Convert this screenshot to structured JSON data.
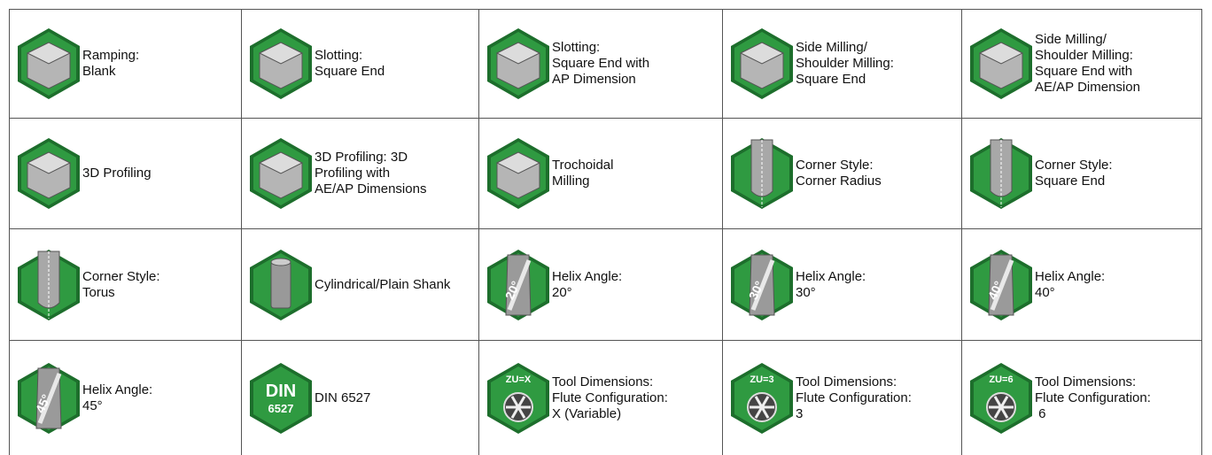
{
  "cells": [
    [
      {
        "lines": [
          "Ramping:",
          "Blank"
        ]
      },
      {
        "lines": [
          "Slotting:",
          "Square End"
        ]
      },
      {
        "lines": [
          "Slotting:",
          "Square End with",
          "AP Dimension"
        ]
      },
      {
        "lines": [
          "Side Milling/",
          "Shoulder Milling:",
          "Square End"
        ]
      },
      {
        "lines": [
          "Side Milling/",
          "Shoulder Milling:",
          "Square End with",
          "AE/AP Dimension"
        ]
      }
    ],
    [
      {
        "lines": [
          "3D Profiling"
        ]
      },
      {
        "lines": [
          "3D Profiling: 3D",
          "Profiling with",
          "AE/AP Dimensions"
        ]
      },
      {
        "lines": [
          "Trochoidal",
          "Milling"
        ]
      },
      {
        "lines": [
          "Corner Style:",
          "Corner Radius"
        ]
      },
      {
        "lines": [
          "Corner Style:",
          "Square End"
        ]
      }
    ],
    [
      {
        "lines": [
          "Corner Style:",
          "Torus"
        ]
      },
      {
        "lines": [
          "Cylindrical/Plain Shank"
        ]
      },
      {
        "lines": [
          "Helix Angle:",
          "20°"
        ],
        "badge": "20°"
      },
      {
        "lines": [
          "Helix Angle:",
          "30°"
        ],
        "badge": "30°"
      },
      {
        "lines": [
          "Helix Angle:",
          "40°"
        ],
        "badge": "40°"
      }
    ],
    [
      {
        "lines": [
          "Helix Angle:",
          "45°"
        ],
        "badge": "45°"
      },
      {
        "lines": [
          "DIN 6527"
        ],
        "badge": [
          "DIN",
          "6527"
        ]
      },
      {
        "lines": [
          "Tool Dimensions:",
          "Flute Configuration:",
          "X (Variable)"
        ],
        "badge": "ZU=X"
      },
      {
        "lines": [
          "Tool Dimensions:",
          "Flute Configuration:",
          "3"
        ],
        "badge": "ZU=3"
      },
      {
        "lines": [
          "Tool Dimensions:",
          "Flute Configuration:",
          " 6"
        ],
        "badge": "ZU=6"
      }
    ]
  ]
}
